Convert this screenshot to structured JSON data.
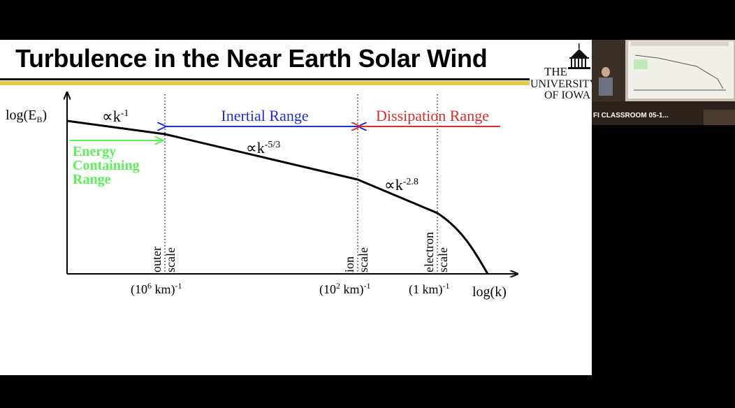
{
  "slide": {
    "title": "Turbulence in the Near Earth Solar Wind",
    "logo": {
      "line1": "THE",
      "line2": "UNIVERSITY",
      "line3": "OF IOWA"
    }
  },
  "figure": {
    "y_axis_label": "log(E",
    "y_axis_sub": "B",
    "x_axis_label": "log(k)",
    "inertial_range_label": "Inertial Range",
    "dissipation_range_label": "Dissipation Range",
    "energy_range_lines": [
      "Energy",
      "Containing",
      "Range"
    ],
    "slope_labels": [
      "∝k",
      "∝k",
      "∝k"
    ],
    "slope_exponents": [
      "-1",
      "-5/3",
      "-2.8"
    ],
    "scale_labels": [
      [
        "outer",
        "scale"
      ],
      [
        "ion",
        "scale"
      ],
      [
        "electron",
        "scale"
      ]
    ],
    "tick_labels": [
      "(10",
      "(10",
      "(1 km)"
    ],
    "tick_exponents": [
      "6",
      "2",
      "-1"
    ],
    "tick_suffixes": [
      " km)",
      " km)",
      ""
    ],
    "tick_suffix_exp": [
      "-1",
      "-1",
      ""
    ],
    "colors": {
      "inertial": "#1f2fd6",
      "dissipation": "#d92d2d",
      "energy": "#5ef05a",
      "title_rule": "#e7c94a"
    }
  },
  "webcam": {
    "label": "FI CLASSROOM 05-1..."
  }
}
